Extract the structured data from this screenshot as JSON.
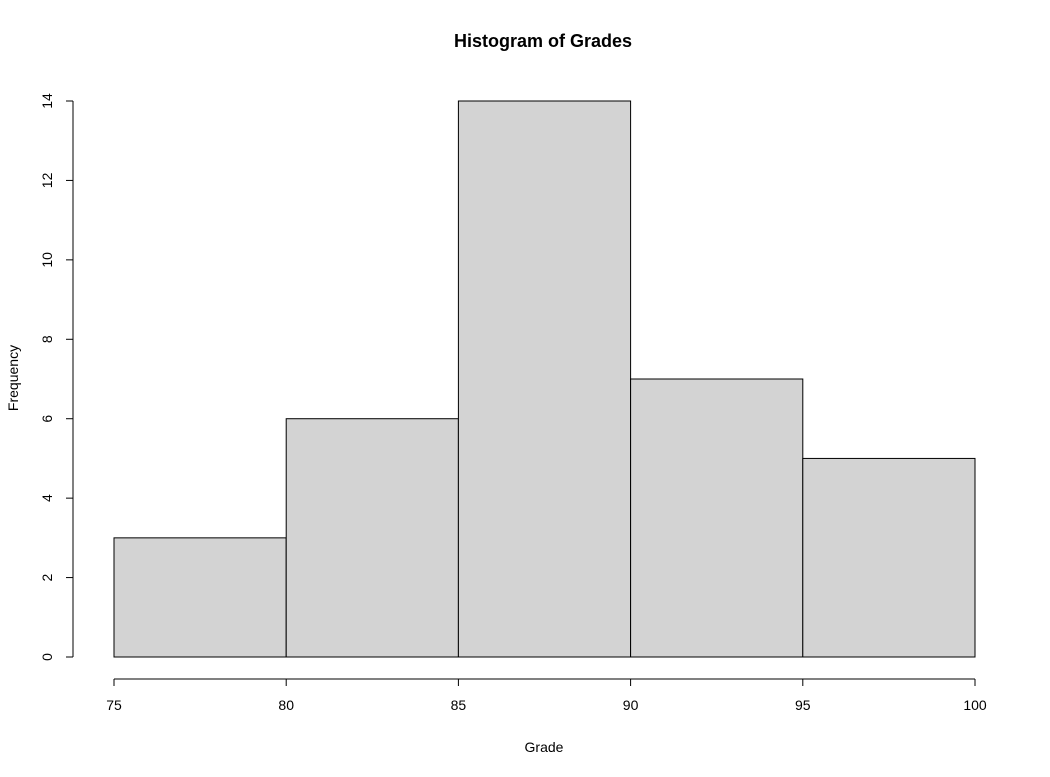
{
  "chart_data": {
    "type": "bar",
    "title": "Histogram of Grades",
    "xlabel": "Grade",
    "ylabel": "Frequency",
    "bins": [
      {
        "start": 75,
        "end": 80,
        "count": 3
      },
      {
        "start": 80,
        "end": 85,
        "count": 6
      },
      {
        "start": 85,
        "end": 90,
        "count": 14
      },
      {
        "start": 90,
        "end": 95,
        "count": 7
      },
      {
        "start": 95,
        "end": 100,
        "count": 5
      }
    ],
    "xticks": [
      75,
      80,
      85,
      90,
      95,
      100
    ],
    "yticks": [
      0,
      2,
      4,
      6,
      8,
      10,
      12,
      14
    ],
    "xlim": [
      75,
      100
    ],
    "ylim": [
      0,
      14
    ],
    "grid": false,
    "bar_color": "#d3d3d3",
    "edge_color": "#000000"
  }
}
